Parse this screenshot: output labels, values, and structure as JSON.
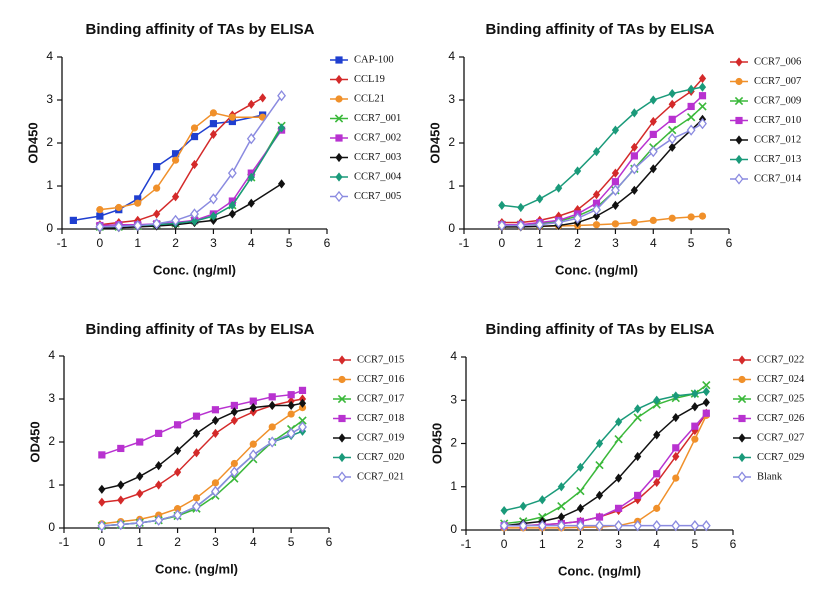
{
  "chart_data": [
    {
      "type": "line",
      "title": "Binding affinity of TAs by ELISA",
      "x_label": "Conc. (ng/ml)",
      "y_label": "OD450",
      "xlim": [
        -1,
        6
      ],
      "xticks": [
        -1,
        0,
        1,
        2,
        3,
        4,
        5,
        6
      ],
      "ylim": [
        0,
        4
      ],
      "yticks": [
        0,
        1,
        2,
        3,
        4
      ],
      "series": [
        {
          "name": "CAP-100",
          "color": "#1f3fd0",
          "marker": "square",
          "x": [
            -0.7,
            0,
            0.5,
            1,
            1.5,
            2,
            2.5,
            3,
            3.5,
            4.3
          ],
          "values": [
            0.2,
            0.3,
            0.45,
            0.7,
            1.45,
            1.75,
            2.15,
            2.45,
            2.5,
            2.65
          ]
        },
        {
          "name": "CCL19",
          "color": "#d42a2a",
          "marker": "diamond",
          "x": [
            0,
            0.5,
            1,
            1.5,
            2,
            2.5,
            3,
            3.5,
            4,
            4.3
          ],
          "values": [
            0.1,
            0.15,
            0.2,
            0.35,
            0.75,
            1.5,
            2.2,
            2.65,
            2.9,
            3.05
          ]
        },
        {
          "name": "CCL21",
          "color": "#f0902a",
          "marker": "circle",
          "x": [
            0,
            0.5,
            1,
            1.5,
            2,
            2.5,
            3,
            3.5,
            4.3
          ],
          "values": [
            0.45,
            0.5,
            0.6,
            0.95,
            1.6,
            2.35,
            2.7,
            2.6,
            2.6
          ]
        },
        {
          "name": "CCR7_001",
          "color": "#3ab83a",
          "marker": "x",
          "x": [
            0,
            0.5,
            1,
            1.5,
            2,
            2.5,
            3,
            3.5,
            4,
            4.8
          ],
          "values": [
            0.05,
            0.05,
            0.07,
            0.1,
            0.13,
            0.2,
            0.3,
            0.55,
            1.2,
            2.4
          ]
        },
        {
          "name": "CCR7_002",
          "color": "#b832d0",
          "marker": "square",
          "x": [
            0,
            0.5,
            1,
            1.5,
            2,
            2.5,
            3,
            3.5,
            4,
            4.8
          ],
          "values": [
            0.08,
            0.1,
            0.1,
            0.12,
            0.15,
            0.2,
            0.35,
            0.65,
            1.3,
            2.3
          ]
        },
        {
          "name": "CCR7_003",
          "color": "#111111",
          "marker": "diamond",
          "x": [
            0,
            0.5,
            1,
            1.5,
            2,
            2.5,
            3,
            3.5,
            4,
            4.8
          ],
          "values": [
            0.02,
            0.03,
            0.05,
            0.07,
            0.1,
            0.15,
            0.2,
            0.35,
            0.6,
            1.05
          ]
        },
        {
          "name": "CCR7_004",
          "color": "#1a9a7a",
          "marker": "diamond",
          "x": [
            0,
            0.5,
            1,
            1.5,
            2,
            2.5,
            3,
            3.5,
            4,
            4.8
          ],
          "values": [
            0.05,
            0.06,
            0.08,
            0.1,
            0.13,
            0.18,
            0.3,
            0.55,
            1.2,
            2.35
          ]
        },
        {
          "name": "CCR7_005",
          "color": "#8a8ae0",
          "marker": "open-diamond",
          "x": [
            0,
            0.5,
            1,
            1.5,
            2,
            2.5,
            3,
            3.5,
            4,
            4.8
          ],
          "values": [
            0.05,
            0.06,
            0.08,
            0.12,
            0.2,
            0.35,
            0.7,
            1.3,
            2.1,
            3.1
          ]
        }
      ]
    },
    {
      "type": "line",
      "title": "Binding affinity of TAs by ELISA",
      "x_label": "Conc. (ng/ml)",
      "y_label": "OD450",
      "xlim": [
        -1,
        6
      ],
      "xticks": [
        -1,
        0,
        1,
        2,
        3,
        4,
        5,
        6
      ],
      "ylim": [
        0,
        4
      ],
      "yticks": [
        0,
        1,
        2,
        3,
        4
      ],
      "x": [
        0,
        0.5,
        1,
        1.5,
        2,
        2.5,
        3,
        3.5,
        4,
        4.5,
        5,
        5.3
      ],
      "series": [
        {
          "name": "CCR7_006",
          "color": "#d42a2a",
          "marker": "diamond",
          "values": [
            0.15,
            0.15,
            0.2,
            0.3,
            0.45,
            0.8,
            1.3,
            1.9,
            2.5,
            2.9,
            3.2,
            3.5
          ]
        },
        {
          "name": "CCR7_007",
          "color": "#f0902a",
          "marker": "circle",
          "values": [
            0.05,
            0.05,
            0.06,
            0.07,
            0.08,
            0.1,
            0.12,
            0.15,
            0.2,
            0.25,
            0.28,
            0.3
          ]
        },
        {
          "name": "CCR7_009",
          "color": "#3ab83a",
          "marker": "x",
          "values": [
            0.1,
            0.1,
            0.12,
            0.18,
            0.3,
            0.5,
            0.9,
            1.4,
            1.9,
            2.3,
            2.6,
            2.85
          ]
        },
        {
          "name": "CCR7_010",
          "color": "#b832d0",
          "marker": "square",
          "values": [
            0.1,
            0.1,
            0.15,
            0.2,
            0.35,
            0.6,
            1.1,
            1.7,
            2.2,
            2.55,
            2.85,
            3.1
          ]
        },
        {
          "name": "CCR7_012",
          "color": "#111111",
          "marker": "diamond",
          "values": [
            0.05,
            0.05,
            0.06,
            0.08,
            0.15,
            0.3,
            0.55,
            0.9,
            1.4,
            1.9,
            2.3,
            2.55
          ]
        },
        {
          "name": "CCR7_013",
          "color": "#1a9a7a",
          "marker": "diamond",
          "values": [
            0.55,
            0.5,
            0.7,
            0.95,
            1.35,
            1.8,
            2.3,
            2.7,
            3.0,
            3.15,
            3.25,
            3.3
          ]
        },
        {
          "name": "CCR7_014",
          "color": "#8a8ae0",
          "marker": "open-diamond",
          "values": [
            0.08,
            0.08,
            0.1,
            0.15,
            0.25,
            0.45,
            0.9,
            1.4,
            1.8,
            2.1,
            2.3,
            2.45
          ]
        }
      ]
    },
    {
      "type": "line",
      "title": "Binding affinity of TAs by ELISA",
      "x_label": "Conc. (ng/ml)",
      "y_label": "OD450",
      "xlim": [
        -1,
        6
      ],
      "xticks": [
        -1,
        0,
        1,
        2,
        3,
        4,
        5,
        6
      ],
      "ylim": [
        0,
        4
      ],
      "yticks": [
        0,
        1,
        2,
        3,
        4
      ],
      "x": [
        0,
        0.5,
        1,
        1.5,
        2,
        2.5,
        3,
        3.5,
        4,
        4.5,
        5,
        5.3
      ],
      "series": [
        {
          "name": "CCR7_015",
          "color": "#d42a2a",
          "marker": "diamond",
          "values": [
            0.6,
            0.65,
            0.8,
            1.0,
            1.3,
            1.75,
            2.2,
            2.5,
            2.7,
            2.85,
            2.95,
            3.0
          ]
        },
        {
          "name": "CCR7_016",
          "color": "#f0902a",
          "marker": "circle",
          "values": [
            0.1,
            0.15,
            0.2,
            0.3,
            0.45,
            0.7,
            1.05,
            1.5,
            1.95,
            2.35,
            2.65,
            2.8
          ]
        },
        {
          "name": "CCR7_017",
          "color": "#3ab83a",
          "marker": "x",
          "values": [
            0.05,
            0.08,
            0.12,
            0.18,
            0.28,
            0.45,
            0.75,
            1.15,
            1.6,
            2.0,
            2.3,
            2.5
          ]
        },
        {
          "name": "CCR7_018",
          "color": "#b832d0",
          "marker": "square",
          "values": [
            1.7,
            1.85,
            2.0,
            2.2,
            2.4,
            2.6,
            2.75,
            2.85,
            2.95,
            3.05,
            3.1,
            3.2
          ]
        },
        {
          "name": "CCR7_019",
          "color": "#111111",
          "marker": "diamond",
          "values": [
            0.9,
            1.0,
            1.2,
            1.45,
            1.8,
            2.2,
            2.5,
            2.7,
            2.8,
            2.85,
            2.85,
            2.9
          ]
        },
        {
          "name": "CCR7_020",
          "color": "#1a9a7a",
          "marker": "diamond",
          "values": [
            0.05,
            0.08,
            0.12,
            0.18,
            0.3,
            0.5,
            0.85,
            1.3,
            1.7,
            2.0,
            2.15,
            2.25
          ]
        },
        {
          "name": "CCR7_021",
          "color": "#8a8ae0",
          "marker": "open-diamond",
          "values": [
            0.05,
            0.08,
            0.12,
            0.18,
            0.3,
            0.5,
            0.85,
            1.3,
            1.7,
            2.0,
            2.2,
            2.35
          ]
        }
      ]
    },
    {
      "type": "line",
      "title": "Binding affinity of TAs by ELISA",
      "x_label": "Conc. (ng/ml)",
      "y_label": "OD450",
      "xlim": [
        -1,
        6
      ],
      "xticks": [
        -1,
        0,
        1,
        2,
        3,
        4,
        5,
        6
      ],
      "ylim": [
        0,
        4
      ],
      "yticks": [
        0,
        1,
        2,
        3,
        4
      ],
      "x": [
        0,
        0.5,
        1,
        1.5,
        2,
        2.5,
        3,
        3.5,
        4,
        4.5,
        5,
        5.3
      ],
      "series": [
        {
          "name": "CCR7_022",
          "color": "#d42a2a",
          "marker": "diamond",
          "values": [
            0.1,
            0.1,
            0.12,
            0.15,
            0.2,
            0.3,
            0.45,
            0.7,
            1.1,
            1.7,
            2.3,
            2.7
          ]
        },
        {
          "name": "CCR7_024",
          "color": "#f0902a",
          "marker": "circle",
          "values": [
            0.05,
            0.05,
            0.05,
            0.05,
            0.06,
            0.07,
            0.1,
            0.2,
            0.5,
            1.2,
            2.1,
            2.65
          ]
        },
        {
          "name": "CCR7_025",
          "color": "#3ab83a",
          "marker": "x",
          "values": [
            0.15,
            0.2,
            0.3,
            0.55,
            0.9,
            1.5,
            2.1,
            2.6,
            2.9,
            3.05,
            3.15,
            3.35
          ]
        },
        {
          "name": "CCR7_026",
          "color": "#b832d0",
          "marker": "square",
          "values": [
            0.1,
            0.1,
            0.12,
            0.15,
            0.2,
            0.3,
            0.5,
            0.8,
            1.3,
            1.9,
            2.4,
            2.7
          ]
        },
        {
          "name": "CCR7_027",
          "color": "#111111",
          "marker": "diamond",
          "values": [
            0.1,
            0.15,
            0.2,
            0.3,
            0.5,
            0.8,
            1.2,
            1.7,
            2.2,
            2.6,
            2.85,
            2.95
          ]
        },
        {
          "name": "CCR7_029",
          "color": "#1a9a7a",
          "marker": "diamond",
          "values": [
            0.45,
            0.55,
            0.7,
            1.0,
            1.45,
            2.0,
            2.5,
            2.8,
            3.0,
            3.1,
            3.15,
            3.2
          ]
        },
        {
          "name": "Blank",
          "color": "#8a8ae0",
          "marker": "open-diamond",
          "values": [
            0.1,
            0.1,
            0.1,
            0.1,
            0.1,
            0.1,
            0.1,
            0.1,
            0.1,
            0.1,
            0.1,
            0.1
          ]
        }
      ]
    }
  ]
}
